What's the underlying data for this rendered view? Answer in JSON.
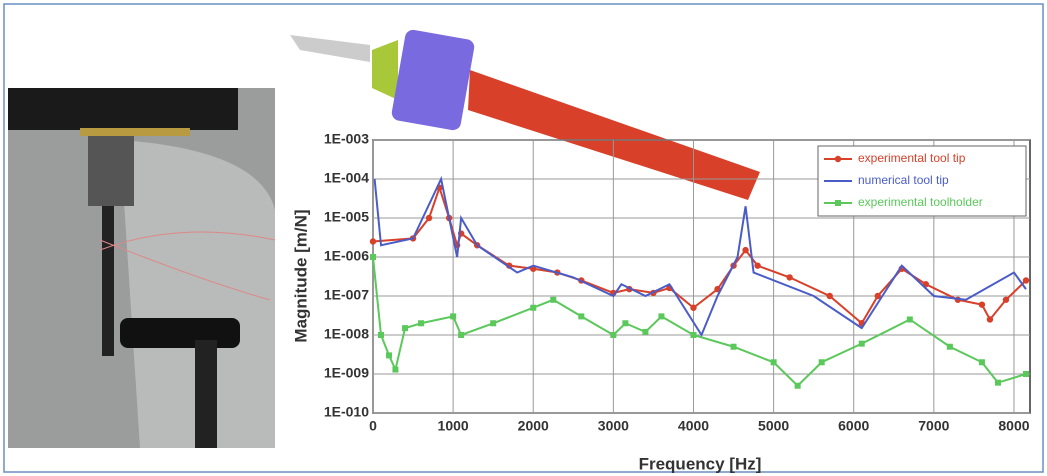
{
  "chart_data": {
    "type": "line",
    "x_label": "Frequency [Hz]",
    "y_label": "Magnitude [m/N]",
    "xlim": [
      0,
      8200
    ],
    "xticks": [
      0,
      1000,
      2000,
      3000,
      4000,
      5000,
      6000,
      7000,
      8000
    ],
    "ylim": [
      1e-10,
      0.001
    ],
    "log_y": true,
    "grid": true,
    "legend": "upper right",
    "yticks": [
      {
        "value": 1e-10,
        "label": "1E-010"
      },
      {
        "value": 1e-09,
        "label": "1E-009"
      },
      {
        "value": 1e-08,
        "label": "1E-008"
      },
      {
        "value": 1e-07,
        "label": "1E-007"
      },
      {
        "value": 1e-06,
        "label": "1E-006"
      },
      {
        "value": 1e-05,
        "label": "1E-005"
      },
      {
        "value": 0.0001,
        "label": "1E-004"
      },
      {
        "value": 0.001,
        "label": "1E-003"
      }
    ],
    "series": [
      {
        "name": "experimental tool tip",
        "color": "#d8402a",
        "marker": "circle",
        "x": [
          0,
          500,
          700,
          830,
          950,
          1050,
          1100,
          1300,
          1700,
          2000,
          2300,
          2600,
          3000,
          3200,
          3500,
          3700,
          4000,
          4300,
          4500,
          4650,
          4800,
          5200,
          5700,
          6100,
          6300,
          6600,
          6900,
          7300,
          7600,
          7700,
          7900,
          8150
        ],
        "values": [
          2.5e-06,
          3e-06,
          1e-05,
          6e-05,
          1e-05,
          2e-06,
          4e-06,
          2e-06,
          6e-07,
          5e-07,
          4e-07,
          2.5e-07,
          1.2e-07,
          1.5e-07,
          1.2e-07,
          1.6e-07,
          5e-08,
          1.5e-07,
          6e-07,
          1.5e-06,
          6e-07,
          3e-07,
          1e-07,
          2e-08,
          1e-07,
          5e-07,
          2e-07,
          8e-08,
          6e-08,
          2.5e-08,
          8e-08,
          2.5e-07
        ]
      },
      {
        "name": "numerical tool tip",
        "color": "#4a5cc8",
        "marker": "none",
        "x": [
          20,
          100,
          500,
          850,
          1050,
          1100,
          1300,
          1800,
          2000,
          2500,
          3000,
          3100,
          3400,
          3700,
          4100,
          4300,
          4550,
          4650,
          4750,
          5500,
          6100,
          6600,
          7000,
          7400,
          8000,
          8150
        ],
        "values": [
          0.0001,
          2e-06,
          3e-06,
          0.0001,
          1e-06,
          1e-05,
          2e-06,
          4e-07,
          6e-07,
          3e-07,
          1e-07,
          2e-07,
          1e-07,
          2e-07,
          1e-08,
          1e-07,
          1e-06,
          2e-05,
          4e-07,
          1e-07,
          1.5e-08,
          6e-07,
          1e-07,
          8e-08,
          4e-07,
          1.5e-07
        ]
      },
      {
        "name": "experimental toolholder",
        "color": "#5ac85a",
        "marker": "square",
        "x": [
          0,
          100,
          200,
          280,
          400,
          600,
          1000,
          1100,
          1500,
          2000,
          2250,
          2600,
          3000,
          3150,
          3400,
          3600,
          4000,
          4500,
          5000,
          5300,
          5600,
          6100,
          6700,
          7200,
          7600,
          7800,
          8150
        ],
        "values": [
          1e-06,
          1e-08,
          3e-09,
          1.3e-09,
          1.5e-08,
          2e-08,
          3e-08,
          1e-08,
          2e-08,
          5e-08,
          8e-08,
          3e-08,
          1e-08,
          2e-08,
          1.2e-08,
          3e-08,
          1e-08,
          5e-09,
          2e-09,
          5e-10,
          2e-09,
          6e-09,
          2.5e-08,
          5e-09,
          2e-09,
          6e-10,
          1e-09
        ]
      }
    ]
  }
}
